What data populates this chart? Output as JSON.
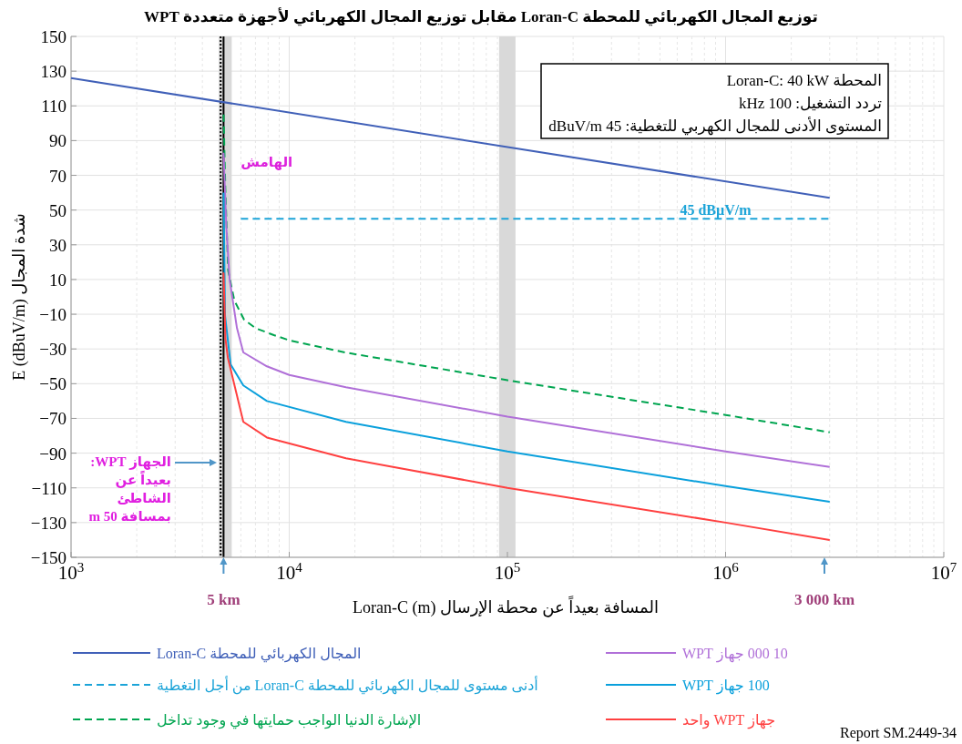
{
  "chart_data": {
    "type": "line",
    "title": "توزيع المجال الكهربائي للمحطة Loran-C مقابل توزيع المجال الكهربائي لأجهزة متعددة WPT",
    "xlabel": "المسافة بعيداً عن محطة الإرسال Loran-C (m)",
    "ylabel": "شدة المجال E (dBuV/m)",
    "log": "x",
    "grid": true,
    "legend": "bottom",
    "xlim": [
      1000,
      10000000
    ],
    "ylim": [
      -150,
      150
    ],
    "xticks": [
      {
        "value": 1000,
        "label": "10$^{3}$"
      },
      {
        "value": 10000,
        "label": "10$^{4}$"
      },
      {
        "value": 100000,
        "label": "10$^{5}$"
      },
      {
        "value": 1000000,
        "label": "10$^{6}$"
      },
      {
        "value": 10000000,
        "label": "10$^{7}$"
      }
    ],
    "yticks": [
      -150,
      -130,
      -110,
      -90,
      -70,
      -50,
      -30,
      -10,
      10,
      30,
      50,
      70,
      90,
      110,
      130,
      150
    ],
    "series": [
      {
        "name": "المجال الكهربائي للمحطة Loran-C",
        "color": "#4060b8",
        "x": [
          1000,
          3000000
        ],
        "values": [
          126,
          57
        ]
      },
      {
        "name": "أدنى مستوى للمجال الكهربائي للمحطة Loran-C من أجل التغطية",
        "color": "#1ca4d8",
        "line_style": "dashed",
        "x": [
          6000,
          3000000
        ],
        "values": [
          45,
          45
        ]
      },
      {
        "name": "الإشارة الدنيا الواجب حمايتها في وجود تداخل",
        "color": "#00a550",
        "line_style": "dashed",
        "x": [
          5000,
          5100,
          5250,
          5600,
          6200,
          7000,
          8500,
          10000,
          18000,
          100000,
          1000000,
          3000000
        ],
        "values": [
          105,
          60,
          15,
          -2,
          -13,
          -18,
          -22,
          -25,
          -32,
          -48,
          -68,
          -78
        ]
      },
      {
        "name": "10 000 جهاز WPT",
        "color": "#b070d8",
        "x": [
          5000,
          5150,
          5330,
          5760,
          6160,
          7900,
          10000,
          18200,
          100000,
          1000000,
          3000000
        ],
        "values": [
          83,
          40,
          10,
          -18,
          -32,
          -40,
          -45,
          -52,
          -69,
          -89,
          -98
        ]
      },
      {
        "name": "100 جهاز WPT",
        "color": "#0aa0dc",
        "x": [
          5000,
          5080,
          5390,
          6160,
          7900,
          18200,
          100000,
          1000000,
          3000000
        ],
        "values": [
          60,
          -11,
          -39,
          -51,
          -60,
          -72,
          -89,
          -109,
          -118
        ]
      },
      {
        "name": "جهاز WPT واحد",
        "color": "#ff4040",
        "x": [
          5000,
          5100,
          5230,
          6160,
          7900,
          18200,
          100000,
          1000000,
          3000000
        ],
        "values": [
          14,
          -24,
          -35,
          -72,
          -81,
          -93,
          -110,
          -130,
          -140
        ]
      }
    ],
    "bands": [
      {
        "axis": "x",
        "from": 4750,
        "to": 5450,
        "label": "الهامش",
        "color": "#d9d9d9"
      },
      {
        "axis": "x",
        "from": 91600,
        "to": 108900,
        "color": "#d9d9d9"
      }
    ],
    "ref_lines": [
      {
        "axis": "x",
        "value": 5000,
        "color": "#000000"
      },
      {
        "axis": "x",
        "value": 4850,
        "color": "#000000",
        "line_style": "dotted"
      }
    ],
    "annotations": [
      "المحطة Loran-C: 40 kW",
      "تردد التشغيل: 100 kHz",
      "المستوى الأدنى للمجال الكهربي للتغطية: 45 dBuV/m",
      {
        "text": "45 dBµV/m",
        "x": 900000,
        "y": 45
      },
      "الجهاز WPT: بعيداً عن الشاطئ بمسافة 50 m",
      {
        "text": "5 km",
        "x": 5000,
        "y": -150
      },
      "3 000 km",
      "Report SM.2449-34"
    ]
  }
}
